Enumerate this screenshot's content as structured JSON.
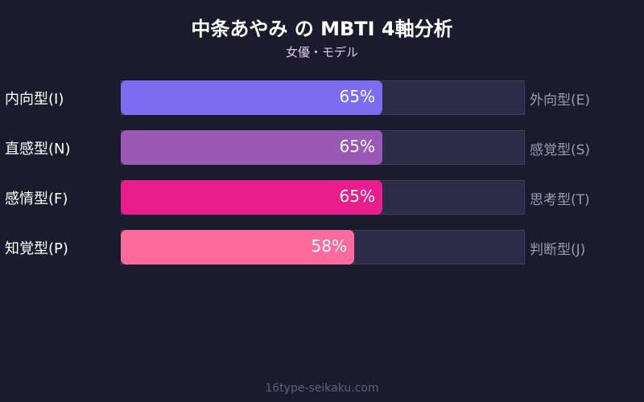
{
  "chart_data": {
    "type": "bar",
    "title": "中条あやみ の MBTI 4軸分析",
    "subtitle": "女優・モデル",
    "xlim": [
      0,
      100
    ],
    "rows": [
      {
        "left_label": "内向型(I)",
        "right_label": "外向型(E)",
        "value": 65,
        "value_label": "65%",
        "color": "#7b6cf0"
      },
      {
        "left_label": "直感型(N)",
        "right_label": "感覚型(S)",
        "value": 65,
        "value_label": "65%",
        "color": "#9b59b6"
      },
      {
        "left_label": "感情型(F)",
        "right_label": "思考型(T)",
        "value": 65,
        "value_label": "65%",
        "color": "#e91e8c"
      },
      {
        "left_label": "知覚型(P)",
        "right_label": "判断型(J)",
        "value": 58,
        "value_label": "58%",
        "color": "#ff6b9d"
      }
    ]
  },
  "footer": "16type-seikaku.com"
}
